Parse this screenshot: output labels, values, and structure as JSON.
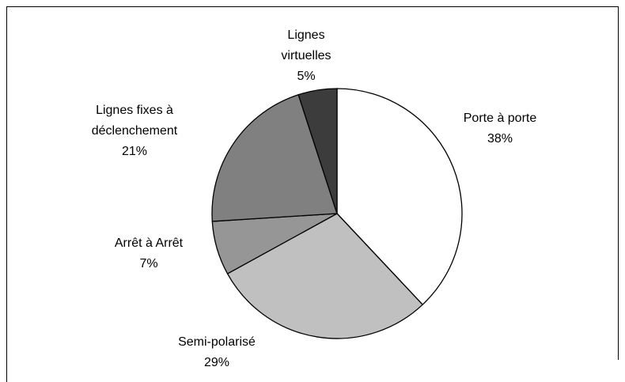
{
  "chart_data": {
    "type": "pie",
    "categories": [
      "Porte à porte",
      "Semi-polarisé",
      "Arrêt à Arrêt",
      "Lignes fixes à déclenchement",
      "Lignes virtuelles"
    ],
    "values": [
      38,
      29,
      7,
      21,
      5
    ],
    "value_labels": [
      "38%",
      "29%",
      "7%",
      "21%",
      "5%"
    ],
    "colors": [
      "#ffffff",
      "#c0c0c0",
      "#969696",
      "#808080",
      "#3c3c3c"
    ]
  }
}
